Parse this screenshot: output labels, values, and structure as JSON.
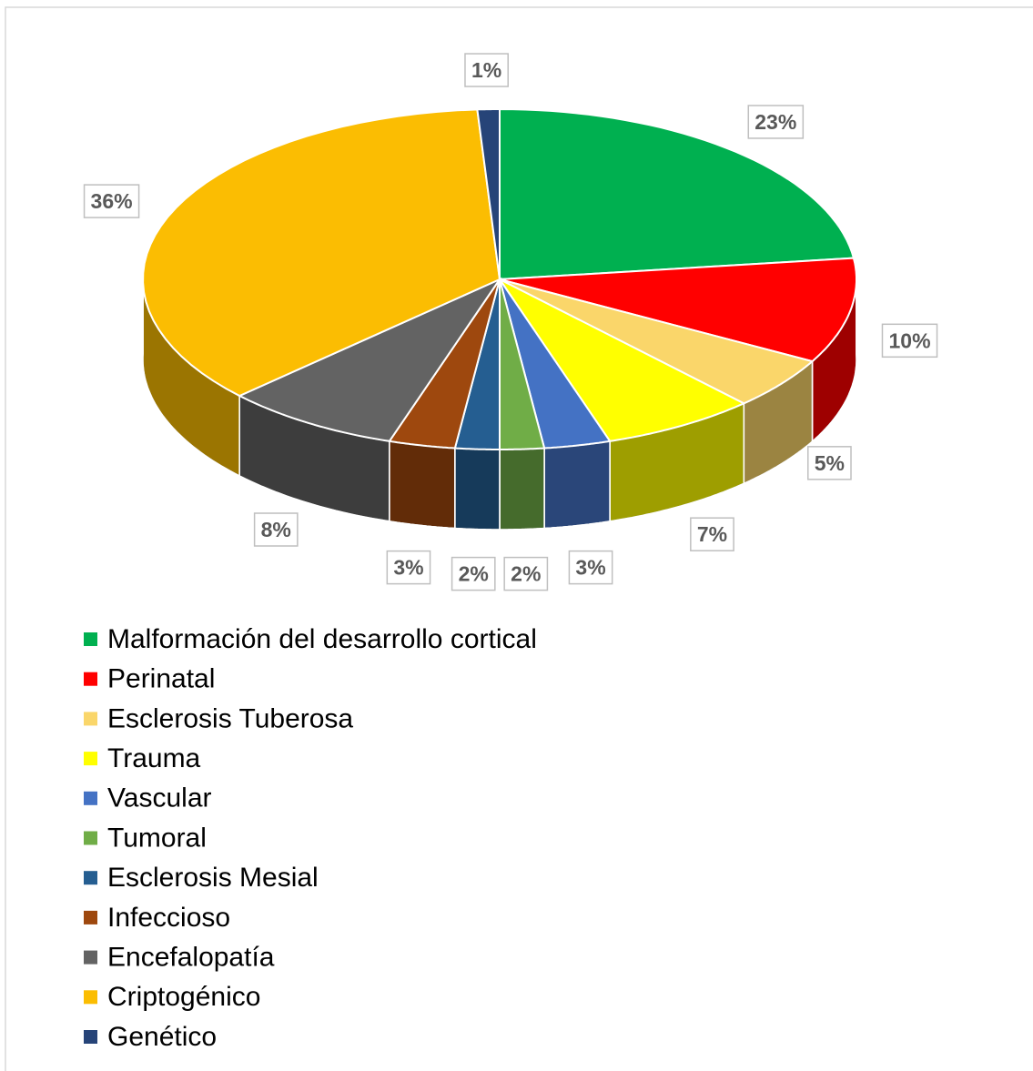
{
  "chart_data": {
    "type": "pie",
    "categories": [
      "Malformación del desarrollo cortical",
      "Perinatal",
      "Esclerosis Tuberosa",
      "Trauma",
      "Vascular",
      "Tumoral",
      "Esclerosis Mesial",
      "Infeccioso",
      "Encefalopatía",
      "Criptogénico",
      "Genético"
    ],
    "values": [
      23,
      10,
      5,
      7,
      3,
      2,
      2,
      3,
      8,
      36,
      1
    ],
    "value_labels": [
      "23%",
      "10%",
      "5%",
      "7%",
      "3%",
      "2%",
      "2%",
      "3%",
      "8%",
      "36%",
      "1%"
    ],
    "colors": [
      "#00b050",
      "#ff0000",
      "#fad66a",
      "#ffff00",
      "#4472c4",
      "#70ad47",
      "#255e91",
      "#9e480e",
      "#636363",
      "#fbbd02",
      "#264478"
    ],
    "legend": "bottom"
  }
}
